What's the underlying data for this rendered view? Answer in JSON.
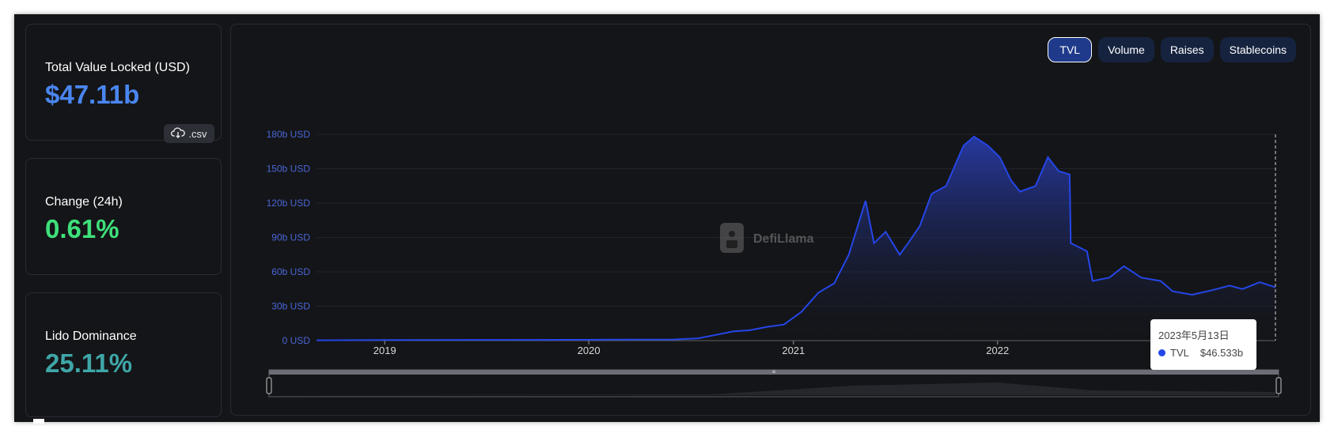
{
  "stats": {
    "tvl": {
      "label": "Total Value Locked (USD)",
      "value": "$47.11b",
      "value_color": "#4a86f0",
      "csv_label": ".csv"
    },
    "change": {
      "label": "Change (24h)",
      "value": "0.61%",
      "value_color": "#3ee07a"
    },
    "dominance": {
      "label": "Lido Dominance",
      "value": "25.11%",
      "value_color": "#3fa6a8"
    }
  },
  "tabs": [
    {
      "label": "TVL",
      "active": true
    },
    {
      "label": "Volume",
      "active": false
    },
    {
      "label": "Raises",
      "active": false
    },
    {
      "label": "Stablecoins",
      "active": false
    }
  ],
  "watermark": "DefiLlama",
  "tooltip": {
    "date": "2023年5月13日",
    "series": "TVL",
    "value": "$46.533b"
  },
  "icons": {
    "csv": "cloud-download-icon",
    "watermark": "llama-logo-icon",
    "zoom_handle": "drag-handle-icon"
  },
  "chart_data": {
    "type": "area",
    "series": [
      {
        "name": "TVL",
        "color": "#2546e8"
      }
    ],
    "y_ticks": [
      "180b USD",
      "150b USD",
      "120b USD",
      "90b USD",
      "60b USD",
      "30b USD",
      "0 USD"
    ],
    "x_ticks": [
      "2019",
      "2020",
      "2021",
      "2022"
    ],
    "ylim": [
      0,
      180
    ],
    "y_unit": "b USD",
    "x_range": [
      "2018-09",
      "2023-05"
    ],
    "points": [
      [
        "2018-09-01",
        0.3
      ],
      [
        "2019-01-01",
        0.5
      ],
      [
        "2019-06-01",
        0.6
      ],
      [
        "2019-12-01",
        0.7
      ],
      [
        "2020-03-01",
        0.8
      ],
      [
        "2020-06-01",
        1.0
      ],
      [
        "2020-07-15",
        2.0
      ],
      [
        "2020-08-15",
        5.0
      ],
      [
        "2020-09-15",
        8.0
      ],
      [
        "2020-10-15",
        9.0
      ],
      [
        "2020-11-15",
        12.0
      ],
      [
        "2020-12-15",
        14.0
      ],
      [
        "2021-01-15",
        25.0
      ],
      [
        "2021-02-15",
        42.0
      ],
      [
        "2021-03-15",
        50.0
      ],
      [
        "2021-04-10",
        75.0
      ],
      [
        "2021-05-10",
        122.0
      ],
      [
        "2021-05-25",
        85.0
      ],
      [
        "2021-06-15",
        95.0
      ],
      [
        "2021-07-10",
        75.0
      ],
      [
        "2021-07-25",
        85.0
      ],
      [
        "2021-08-15",
        100.0
      ],
      [
        "2021-09-05",
        128.0
      ],
      [
        "2021-10-01",
        135.0
      ],
      [
        "2021-11-01",
        170.0
      ],
      [
        "2021-11-20",
        178.0
      ],
      [
        "2021-12-15",
        170.0
      ],
      [
        "2022-01-05",
        160.0
      ],
      [
        "2022-01-25",
        140.0
      ],
      [
        "2022-02-10",
        130.0
      ],
      [
        "2022-03-10",
        135.0
      ],
      [
        "2022-04-01",
        160.0
      ],
      [
        "2022-04-20",
        148.0
      ],
      [
        "2022-05-10",
        145.0
      ],
      [
        "2022-05-12",
        85.0
      ],
      [
        "2022-06-10",
        78.0
      ],
      [
        "2022-06-20",
        52.0
      ],
      [
        "2022-07-20",
        55.0
      ],
      [
        "2022-08-15",
        65.0
      ],
      [
        "2022-09-15",
        55.0
      ],
      [
        "2022-10-20",
        52.0
      ],
      [
        "2022-11-10",
        43.0
      ],
      [
        "2022-12-15",
        40.0
      ],
      [
        "2023-01-20",
        44.0
      ],
      [
        "2023-02-20",
        48.0
      ],
      [
        "2023-03-15",
        45.0
      ],
      [
        "2023-04-15",
        51.0
      ],
      [
        "2023-05-13",
        46.5
      ]
    ],
    "tooltip_date": "2023-05-13",
    "grid": true
  }
}
